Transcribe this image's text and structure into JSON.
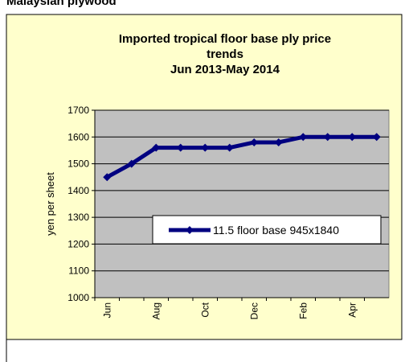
{
  "heading": "Malaysian plywood",
  "chart_data": {
    "type": "line",
    "title": [
      "Imported tropical floor base ply price",
      "trends",
      "Jun 2013-May 2014"
    ],
    "y_label": "yen per sheet",
    "categories": [
      "Jun",
      null,
      "Aug",
      null,
      "Oct",
      null,
      "Dec",
      null,
      "Feb",
      null,
      "Apr",
      null
    ],
    "series": [
      {
        "name": "11.5 floor base 945x1840",
        "color": "#000080",
        "values": [
          1450,
          1500,
          1560,
          1560,
          1560,
          1560,
          1580,
          1580,
          1600,
          1600,
          1600,
          1600
        ]
      }
    ],
    "ylim": [
      1000,
      1700
    ],
    "yticks": [
      1000,
      1100,
      1200,
      1300,
      1400,
      1500,
      1600,
      1700
    ],
    "grid": true,
    "legend": "center-right"
  }
}
